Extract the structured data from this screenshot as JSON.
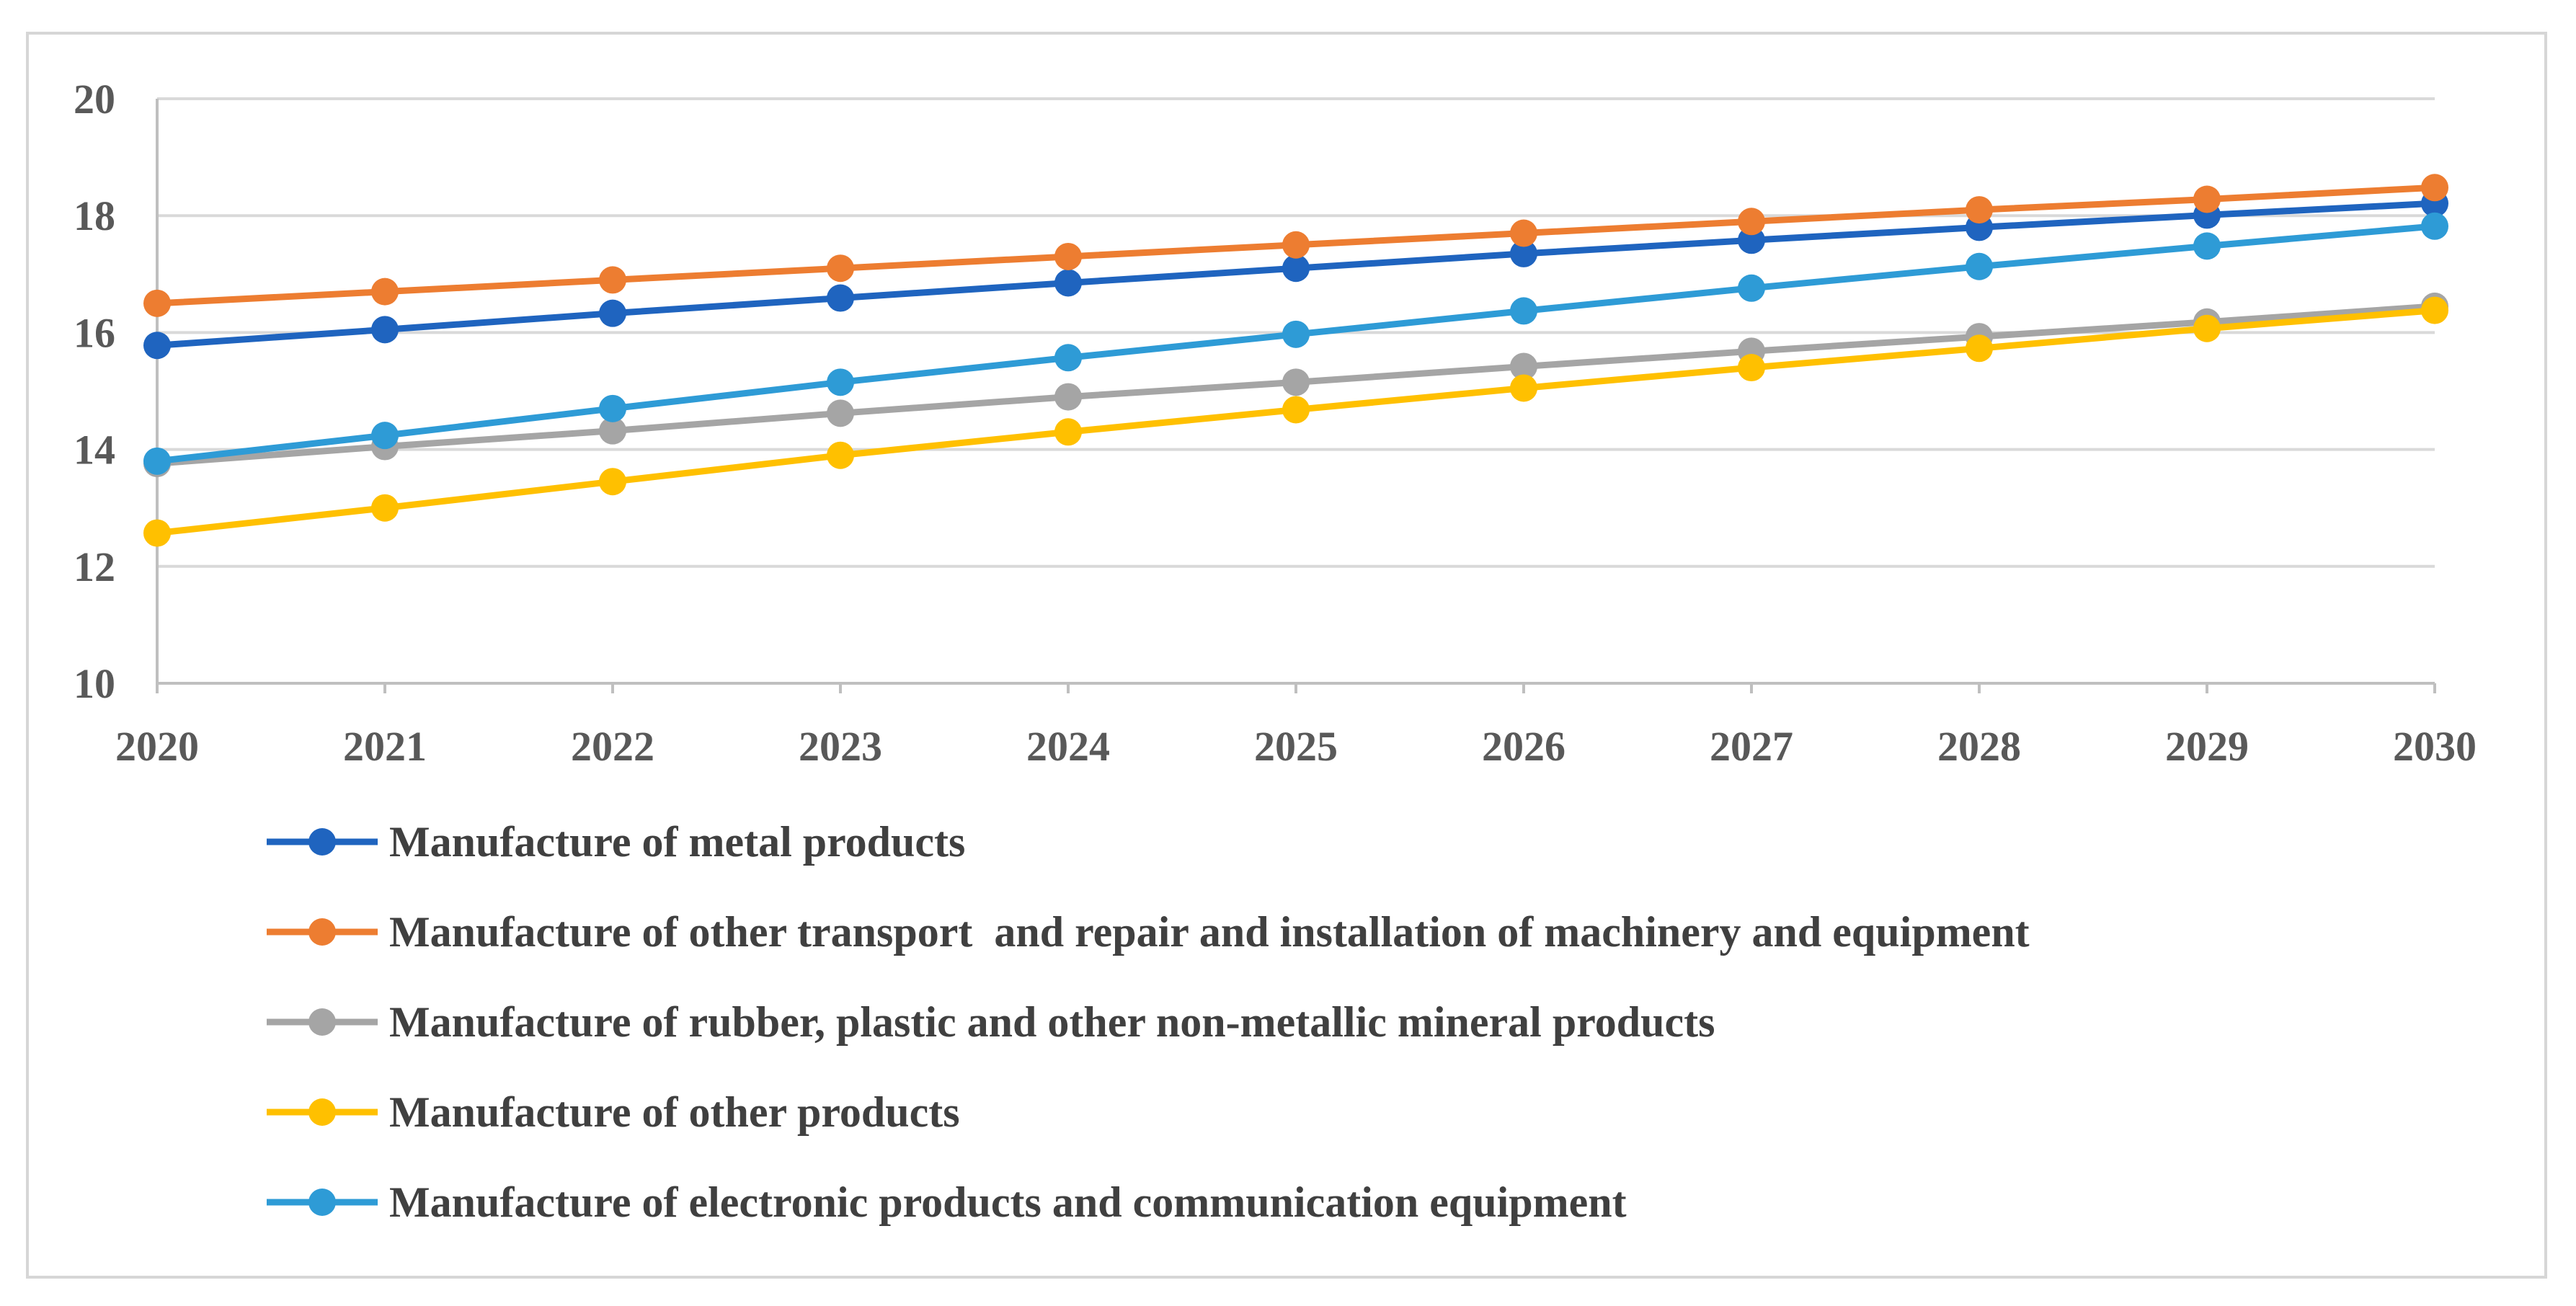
{
  "chart_data": {
    "type": "line",
    "title": "",
    "xlabel": "",
    "ylabel": "",
    "x": [
      2020,
      2021,
      2022,
      2023,
      2024,
      2025,
      2026,
      2027,
      2028,
      2029,
      2030
    ],
    "ylim": [
      10,
      20
    ],
    "yticks": [
      10,
      12,
      14,
      16,
      18,
      20
    ],
    "grid": true,
    "legend_position": "bottom",
    "series": [
      {
        "name": "Manufacture of metal products",
        "color": "#1F64BF",
        "values": [
          15.78,
          16.05,
          16.33,
          16.59,
          16.85,
          17.1,
          17.35,
          17.58,
          17.8,
          18.01,
          18.21
        ]
      },
      {
        "name": "Manufacture of other transport  and repair and installation of machinery and equipment",
        "color": "#ED7D31",
        "values": [
          16.5,
          16.7,
          16.9,
          17.1,
          17.3,
          17.5,
          17.7,
          17.9,
          18.1,
          18.28,
          18.48
        ]
      },
      {
        "name": "Manufacture of rubber, plastic and other non-metallic mineral products",
        "color": "#A5A5A5",
        "values": [
          13.76,
          14.05,
          14.32,
          14.62,
          14.9,
          15.15,
          15.42,
          15.68,
          15.93,
          16.18,
          16.45
        ]
      },
      {
        "name": "Manufacture of other products",
        "color": "#FFC000",
        "values": [
          12.57,
          13.0,
          13.45,
          13.9,
          14.3,
          14.68,
          15.05,
          15.4,
          15.73,
          16.07,
          16.38
        ]
      },
      {
        "name": "Manufacture of electronic products and communication equipment",
        "color": "#2E9BD6",
        "values": [
          13.8,
          14.24,
          14.7,
          15.15,
          15.57,
          15.97,
          16.37,
          16.76,
          17.13,
          17.48,
          17.82
        ]
      }
    ]
  }
}
